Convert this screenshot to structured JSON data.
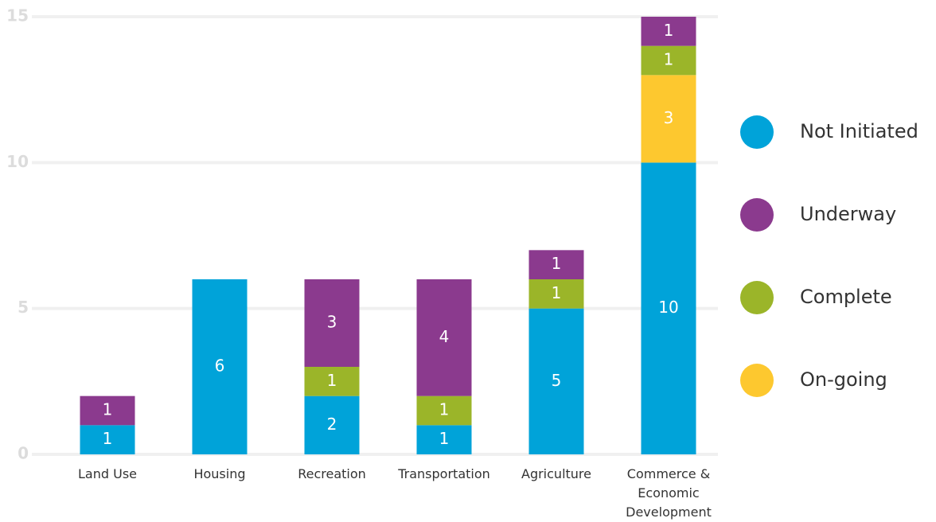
{
  "chart_data": {
    "type": "stacked_bar",
    "categories": [
      "Land Use",
      "Housing",
      "Recreation",
      "Transportation",
      "Agriculture",
      "Commerce & Economic Development"
    ],
    "series": [
      {
        "name": "Not Initiated",
        "color": "#00a3d9",
        "values": [
          1,
          6,
          2,
          1,
          5,
          10
        ]
      },
      {
        "name": "On-going",
        "color": "#fdc82f",
        "values": [
          0,
          0,
          0,
          0,
          0,
          3
        ]
      },
      {
        "name": "Complete",
        "color": "#9bb529",
        "values": [
          0,
          0,
          1,
          1,
          1,
          1
        ]
      },
      {
        "name": "Underway",
        "color": "#8b3a8e",
        "values": [
          1,
          0,
          3,
          4,
          1,
          1
        ]
      }
    ],
    "legend_order": [
      "Not Initiated",
      "Underway",
      "Complete",
      "On-going"
    ],
    "ylim": [
      0,
      15
    ],
    "yticks": [
      0,
      5,
      10,
      15
    ],
    "grid": true,
    "legend": "right"
  }
}
